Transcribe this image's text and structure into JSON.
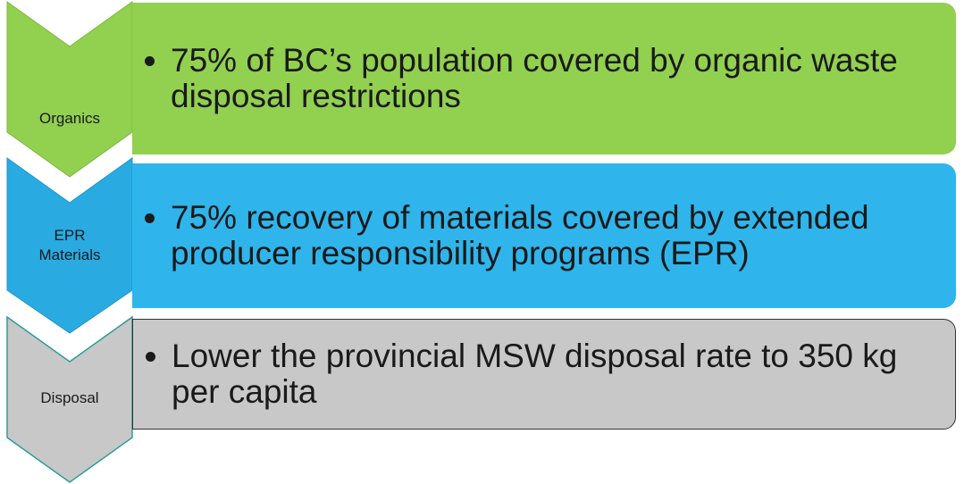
{
  "items": [
    {
      "label": "Organics",
      "text": "75% of BC’s population covered by organic waste disposal restrictions"
    },
    {
      "label": "EPR Materials",
      "text": "75% recovery of materials covered by extended producer responsibility programs (EPR)"
    },
    {
      "label": "Disposal",
      "text": "Lower the provincial MSW disposal rate to 350 kg per capita"
    }
  ]
}
